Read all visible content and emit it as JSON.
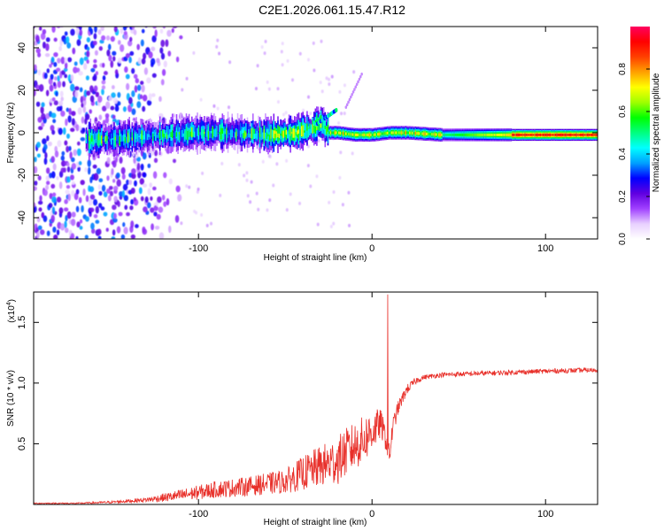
{
  "figure": {
    "title": "C2E1.2026.061.15.47.R12"
  },
  "chart_data": [
    {
      "type": "heatmap",
      "name": "spectrogram",
      "xlabel": "Height of straight line (km)",
      "ylabel": "Frequency (Hz)",
      "xlim": [
        -195,
        130
      ],
      "ylim": [
        -50,
        50
      ],
      "xticks": [
        -100,
        0,
        100
      ],
      "xtick_labels": [
        "-100",
        "0",
        "100"
      ],
      "yticks": [
        -40,
        -20,
        0,
        20,
        40
      ],
      "ytick_labels": [
        "-40",
        "-20",
        "0",
        "20",
        "40"
      ],
      "ridge_x": [
        -150,
        -120,
        -100,
        -80,
        -60,
        -45,
        -35,
        -30,
        -25,
        -20,
        -10,
        0,
        10,
        20,
        40,
        60,
        80,
        100,
        130
      ],
      "ridge_y": [
        -3,
        -1,
        0,
        0,
        -1,
        0,
        2,
        5,
        0,
        0,
        -1,
        -1,
        0,
        0,
        -1,
        -1,
        -1,
        -1,
        -1
      ],
      "colorbar": {
        "label": "Normalized spectral amplitude",
        "range": [
          0.0,
          1.0
        ],
        "ticks": [
          0.0,
          0.2,
          0.4,
          0.6,
          0.8
        ],
        "tick_labels": [
          "0.0",
          "0.2",
          "0.4",
          "0.6",
          "0.8"
        ],
        "colors": [
          "#ffffff",
          "#e8d0ff",
          "#a040ff",
          "#6000e0",
          "#0000ff",
          "#00a0ff",
          "#00ffff",
          "#00ff80",
          "#00ff00",
          "#a0ff00",
          "#ffff00",
          "#ffa000",
          "#ff4000",
          "#ff0000",
          "#ff0060"
        ]
      }
    },
    {
      "type": "line",
      "name": "snr",
      "xlabel": "Height of straight line (km)",
      "ylabel": "SNR (10 * v/v)",
      "scale_label": "(x10",
      "scale_exponent": "4",
      "xlim": [
        -195,
        130
      ],
      "ylim": [
        0,
        1.75
      ],
      "xticks": [
        -100,
        0,
        100
      ],
      "xtick_labels": [
        "-100",
        "0",
        "100"
      ],
      "yticks": [
        0.5,
        1.0,
        1.5
      ],
      "ytick_labels": [
        "0.5",
        "1.0",
        "1.5"
      ],
      "color": "#e8302a",
      "x": [
        -195,
        -170,
        -150,
        -130,
        -110,
        -90,
        -70,
        -50,
        -40,
        -30,
        -20,
        -15,
        -10,
        -5,
        0,
        5,
        8,
        10,
        12,
        15,
        20,
        25,
        30,
        40,
        60,
        80,
        100,
        130
      ],
      "y": [
        0.01,
        0.01,
        0.02,
        0.04,
        0.08,
        0.13,
        0.16,
        0.2,
        0.27,
        0.33,
        0.38,
        0.45,
        0.5,
        0.55,
        0.62,
        0.68,
        0.55,
        0.4,
        0.65,
        0.8,
        0.95,
        1.02,
        1.05,
        1.07,
        1.08,
        1.09,
        1.1,
        1.11
      ],
      "noise": [
        0.005,
        0.005,
        0.01,
        0.02,
        0.05,
        0.07,
        0.08,
        0.1,
        0.14,
        0.17,
        0.2,
        0.2,
        0.2,
        0.2,
        0.18,
        0.12,
        0.1,
        0.1,
        0.08,
        0.06,
        0.04,
        0.03,
        0.02,
        0.02,
        0.02,
        0.02,
        0.02,
        0.02
      ],
      "spike_x": 9,
      "spike_y": 1.73
    }
  ]
}
